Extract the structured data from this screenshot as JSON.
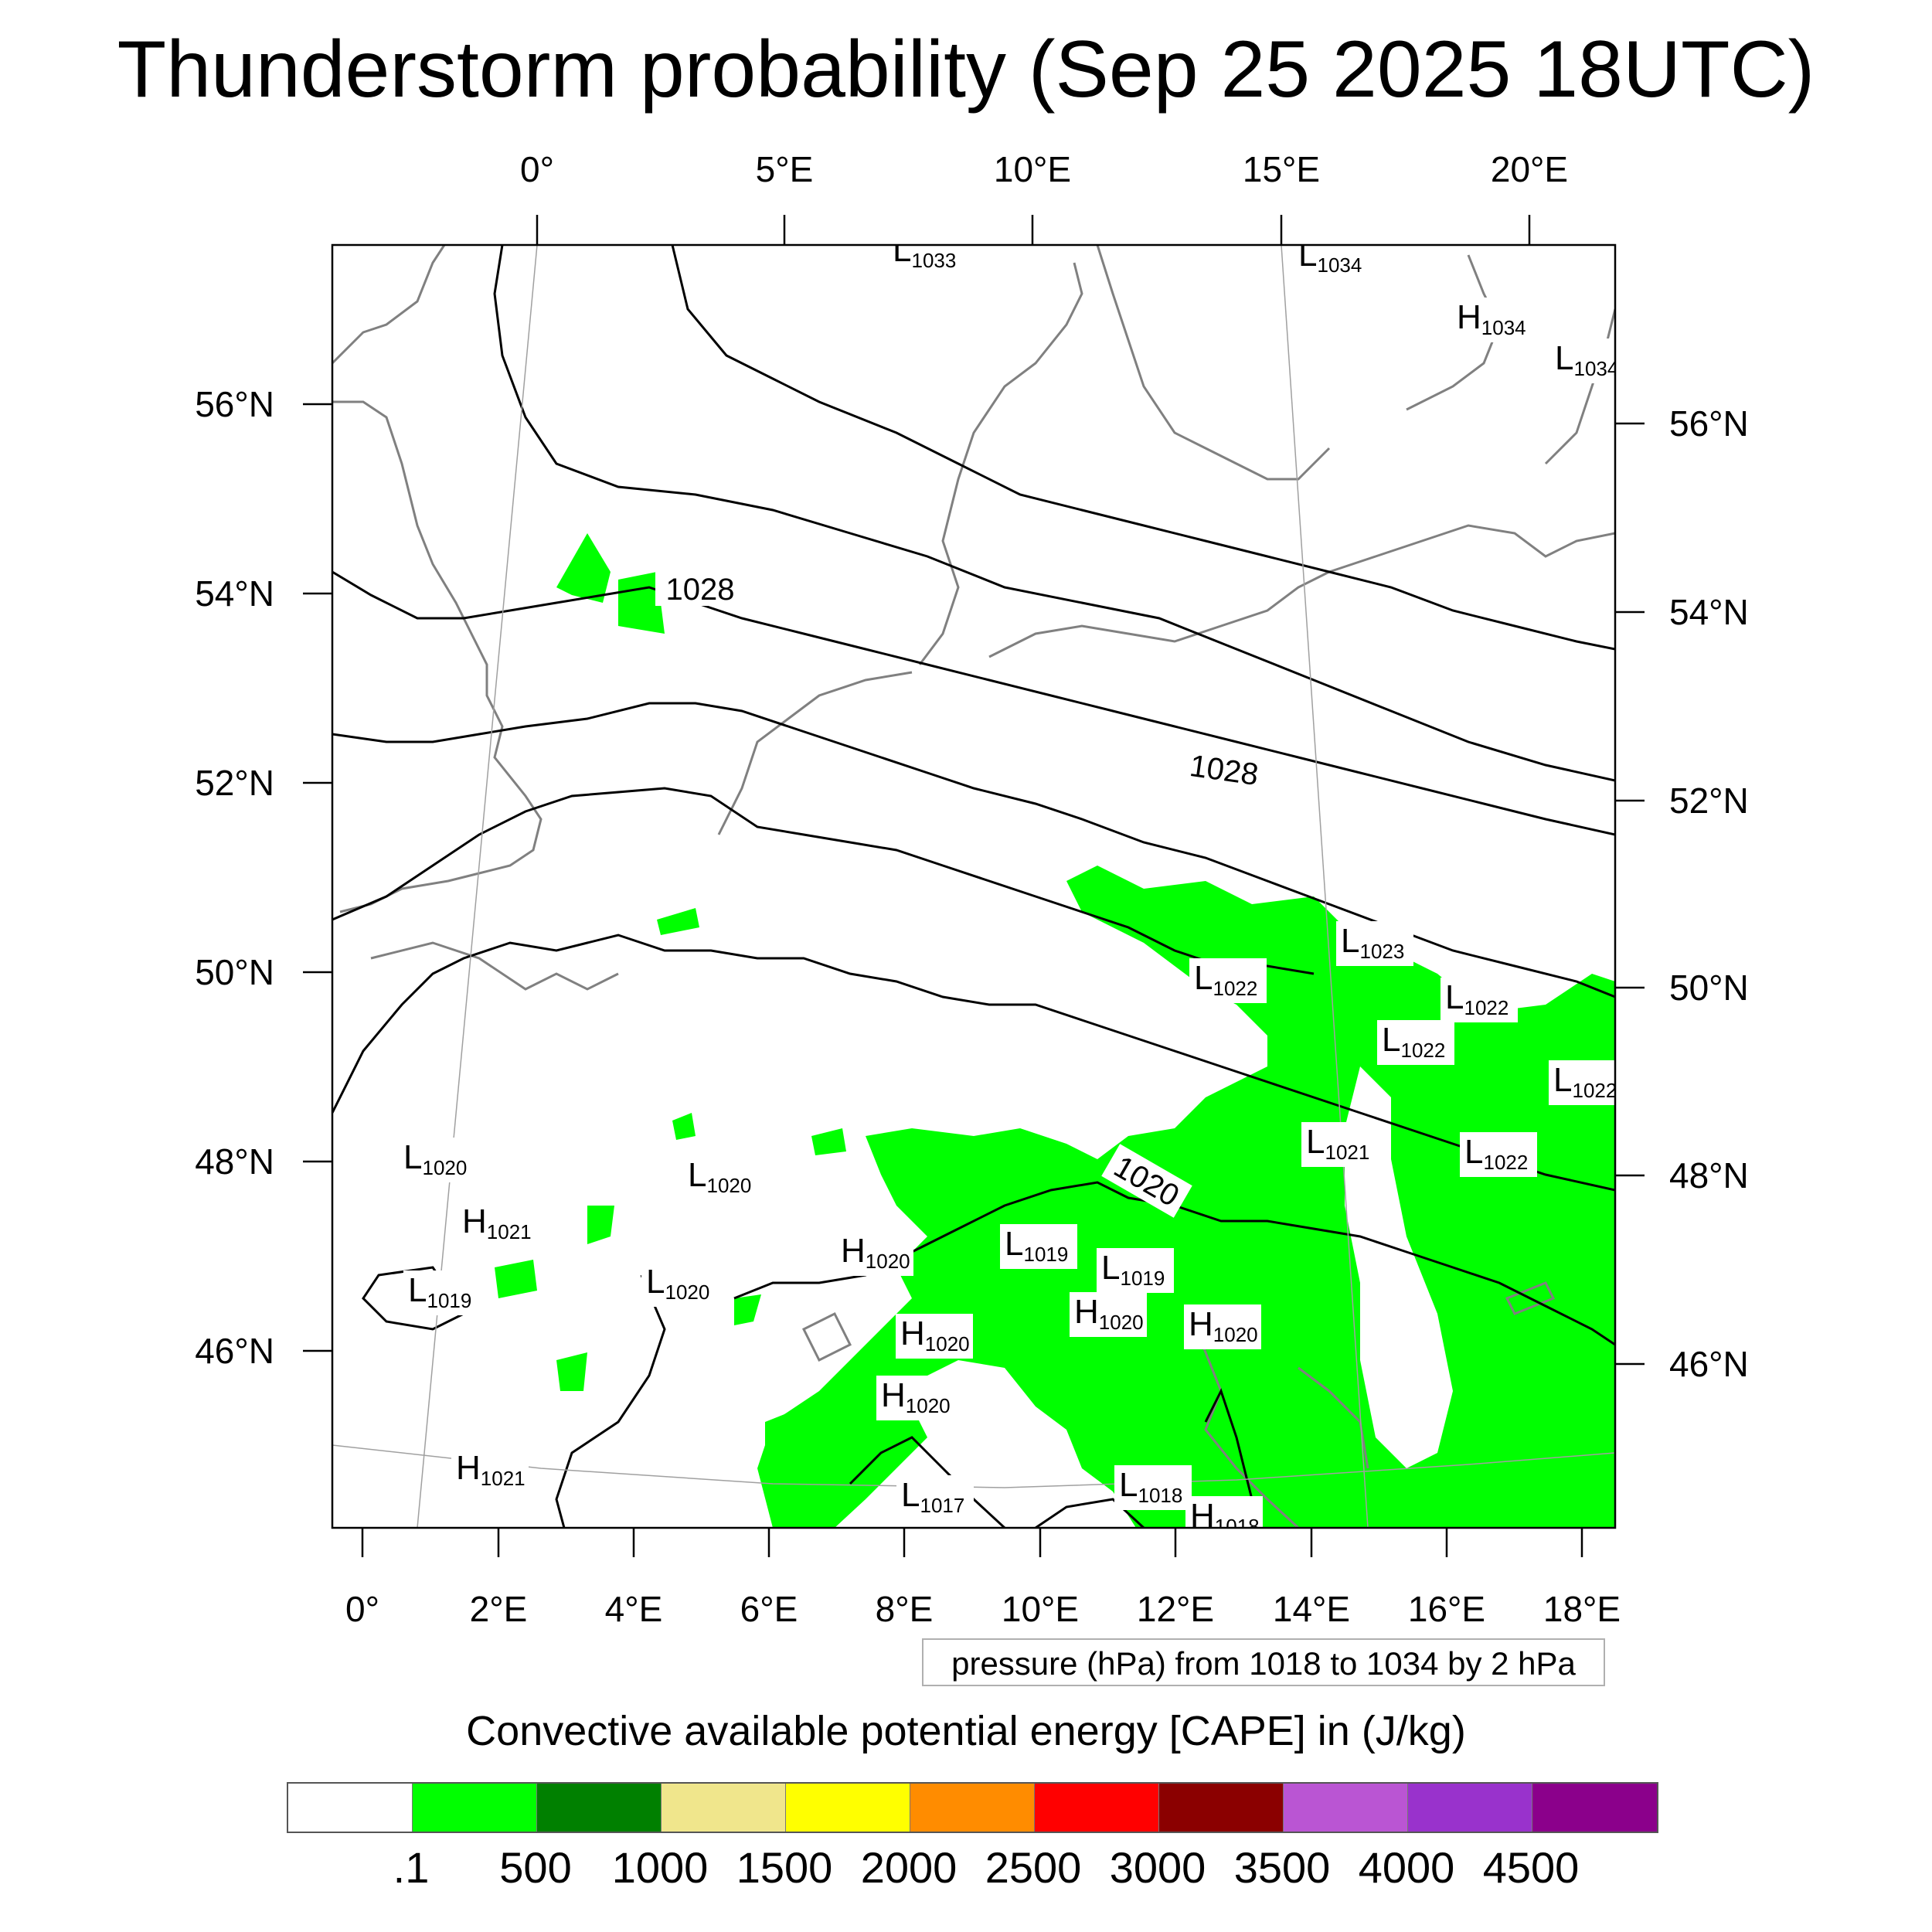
{
  "title": "Thunderstorm probability (Sep 25 2025 18UTC)",
  "top_lon_labels": [
    "0°",
    "5°E",
    "10°E",
    "15°E",
    "20°E"
  ],
  "bottom_lon_labels": [
    "0°",
    "2°E",
    "4°E",
    "6°E",
    "8°E",
    "10°E",
    "12°E",
    "14°E",
    "16°E",
    "18°E"
  ],
  "left_lat_labels": [
    "56°N",
    "54°N",
    "52°N",
    "50°N",
    "48°N",
    "46°N"
  ],
  "right_lat_labels": [
    "56°N",
    "54°N",
    "52°N",
    "50°N",
    "48°N",
    "46°N"
  ],
  "isobar_labels": [
    "1028",
    "1028",
    "1020"
  ],
  "pressure_centers": [
    {
      "type": "L",
      "value": "1033"
    },
    {
      "type": "L",
      "value": "1034"
    },
    {
      "type": "H",
      "value": "1034"
    },
    {
      "type": "L",
      "value": "1034"
    },
    {
      "type": "L",
      "value": "1023"
    },
    {
      "type": "L",
      "value": "1022"
    },
    {
      "type": "L",
      "value": "1022"
    },
    {
      "type": "L",
      "value": "1022"
    },
    {
      "type": "L",
      "value": "1022"
    },
    {
      "type": "L",
      "value": "1021"
    },
    {
      "type": "L",
      "value": "1022"
    },
    {
      "type": "L",
      "value": "1020"
    },
    {
      "type": "H",
      "value": "1021"
    },
    {
      "type": "L",
      "value": "1020"
    },
    {
      "type": "L",
      "value": "1019"
    },
    {
      "type": "L",
      "value": "1020"
    },
    {
      "type": "H",
      "value": "1020"
    },
    {
      "type": "L",
      "value": "1019"
    },
    {
      "type": "L",
      "value": "1019"
    },
    {
      "type": "H",
      "value": "1020"
    },
    {
      "type": "H",
      "value": "1020"
    },
    {
      "type": "H",
      "value": "1020"
    },
    {
      "type": "H",
      "value": "1020"
    },
    {
      "type": "H",
      "value": "1021"
    },
    {
      "type": "L",
      "value": "1017"
    },
    {
      "type": "L",
      "value": "1018"
    },
    {
      "type": "H",
      "value": "1018"
    }
  ],
  "contour_info": "pressure (hPa) from 1018 to 1034 by 2 hPa",
  "colorbar": {
    "title": "Convective available potential energy [CAPE] in (J/kg)",
    "colors": [
      "#ffffff",
      "#00ff00",
      "#008000",
      "#f0e68c",
      "#ffff00",
      "#ff8c00",
      "#ff0000",
      "#8b0000",
      "#ba55d3",
      "#9932cc",
      "#8b008b"
    ],
    "labels": [
      ".1",
      "500",
      "1000",
      "1500",
      "2000",
      "2500",
      "3000",
      "3500",
      "4000",
      "4500"
    ]
  },
  "colors": {
    "cape_low": "#00ff00",
    "coast": "#808080",
    "isobar": "#000000"
  }
}
